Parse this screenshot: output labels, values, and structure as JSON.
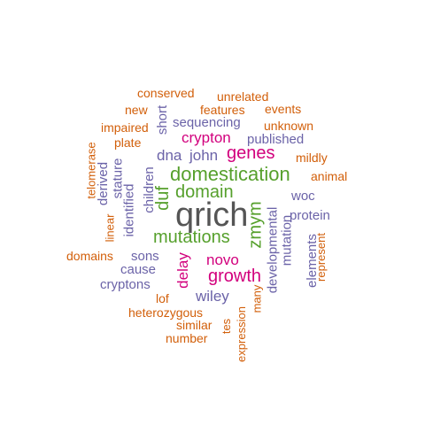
{
  "wordcloud": {
    "words": [
      {
        "text": "qrich",
        "color": "#555555"
      },
      {
        "text": "domestication",
        "color": "#56a02c"
      },
      {
        "text": "mutations",
        "color": "#56a02c"
      },
      {
        "text": "domain",
        "color": "#56a02c"
      },
      {
        "text": "duf",
        "color": "#56a02c"
      },
      {
        "text": "zmym",
        "color": "#56a02c"
      },
      {
        "text": "genes",
        "color": "#d2007d"
      },
      {
        "text": "crypton",
        "color": "#d2007d"
      },
      {
        "text": "novo",
        "color": "#d2007d"
      },
      {
        "text": "growth",
        "color": "#d2007d"
      },
      {
        "text": "delay",
        "color": "#d2007d"
      },
      {
        "text": "dna",
        "color": "#6b63a8"
      },
      {
        "text": "john",
        "color": "#6b63a8"
      },
      {
        "text": "sequencing",
        "color": "#6b63a8"
      },
      {
        "text": "published",
        "color": "#6b63a8"
      },
      {
        "text": "short",
        "color": "#6b63a8"
      },
      {
        "text": "children",
        "color": "#6b63a8"
      },
      {
        "text": "identified",
        "color": "#6b63a8"
      },
      {
        "text": "stature",
        "color": "#6b63a8"
      },
      {
        "text": "derived",
        "color": "#6b63a8"
      },
      {
        "text": "sons",
        "color": "#6b63a8"
      },
      {
        "text": "cause",
        "color": "#6b63a8"
      },
      {
        "text": "cryptons",
        "color": "#6b63a8"
      },
      {
        "text": "wiley",
        "color": "#6b63a8"
      },
      {
        "text": "developmental",
        "color": "#6b63a8"
      },
      {
        "text": "mutation",
        "color": "#6b63a8"
      },
      {
        "text": "elements",
        "color": "#6b63a8"
      },
      {
        "text": "woc",
        "color": "#6b63a8"
      },
      {
        "text": "protein",
        "color": "#6b63a8"
      },
      {
        "text": "conserved",
        "color": "#d25f0a"
      },
      {
        "text": "unrelated",
        "color": "#d25f0a"
      },
      {
        "text": "new",
        "color": "#d25f0a"
      },
      {
        "text": "features",
        "color": "#d25f0a"
      },
      {
        "text": "events",
        "color": "#d25f0a"
      },
      {
        "text": "impaired",
        "color": "#d25f0a"
      },
      {
        "text": "unknown",
        "color": "#d25f0a"
      },
      {
        "text": "plate",
        "color": "#d25f0a"
      },
      {
        "text": "mildly",
        "color": "#d25f0a"
      },
      {
        "text": "telomerase",
        "color": "#d25f0a"
      },
      {
        "text": "animal",
        "color": "#d25f0a"
      },
      {
        "text": "linear",
        "color": "#d25f0a"
      },
      {
        "text": "domains",
        "color": "#d25f0a"
      },
      {
        "text": "represent",
        "color": "#d25f0a"
      },
      {
        "text": "lof",
        "color": "#d25f0a"
      },
      {
        "text": "many",
        "color": "#d25f0a"
      },
      {
        "text": "heterozygous",
        "color": "#d25f0a"
      },
      {
        "text": "similar",
        "color": "#d25f0a"
      },
      {
        "text": "tes",
        "color": "#d25f0a"
      },
      {
        "text": "number",
        "color": "#d25f0a"
      },
      {
        "text": "expression",
        "color": "#d25f0a"
      }
    ]
  }
}
